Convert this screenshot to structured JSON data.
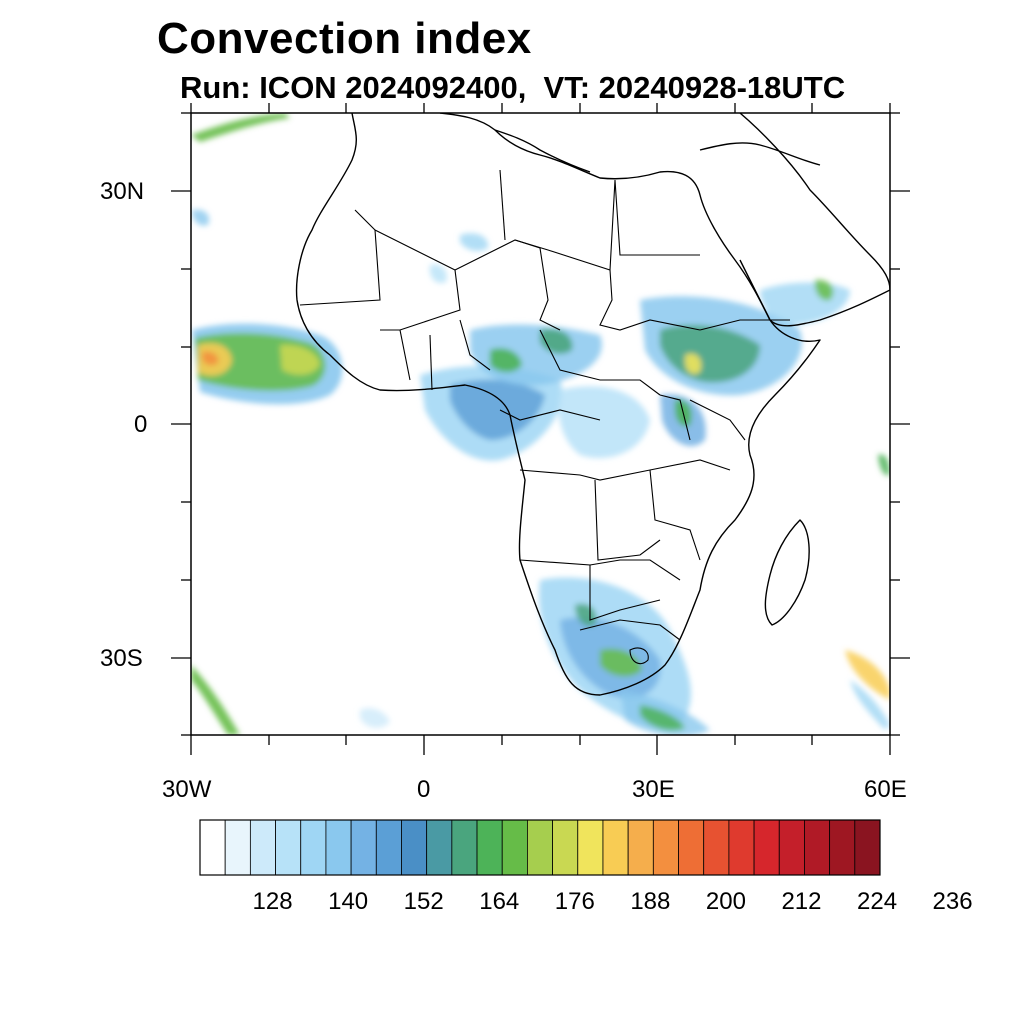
{
  "header": {
    "title": "Convection index",
    "subtitle": "Run: ICON 2024092400,  VT: 20240928-18UTC"
  },
  "map": {
    "lon_range": [
      -30,
      60
    ],
    "lat_range": [
      -40,
      40
    ],
    "lat_tick_labels": [
      "30N",
      "0",
      "30S"
    ],
    "lon_tick_labels": [
      "30W",
      "0",
      "30E",
      "60E"
    ]
  },
  "colorbar": {
    "label_values": [
      "128",
      "140",
      "152",
      "164",
      "176",
      "188",
      "200",
      "212",
      "224",
      "236"
    ],
    "colors": [
      "#ffffff",
      "#e8f5fc",
      "#cdeafa",
      "#b7e2f8",
      "#9fd6f4",
      "#8ac8ee",
      "#74b2e4",
      "#5b9fd6",
      "#4a8fc6",
      "#4a9aa4",
      "#4aa57e",
      "#4db358",
      "#66bc48",
      "#a6ce4e",
      "#c9d852",
      "#f0e45c",
      "#f8cc54",
      "#f5ae4c",
      "#f38f3f",
      "#ee6e35",
      "#e75231",
      "#df3a2e",
      "#d6262c",
      "#c41f2a",
      "#b01a26",
      "#9e1722",
      "#8a1420"
    ]
  }
}
